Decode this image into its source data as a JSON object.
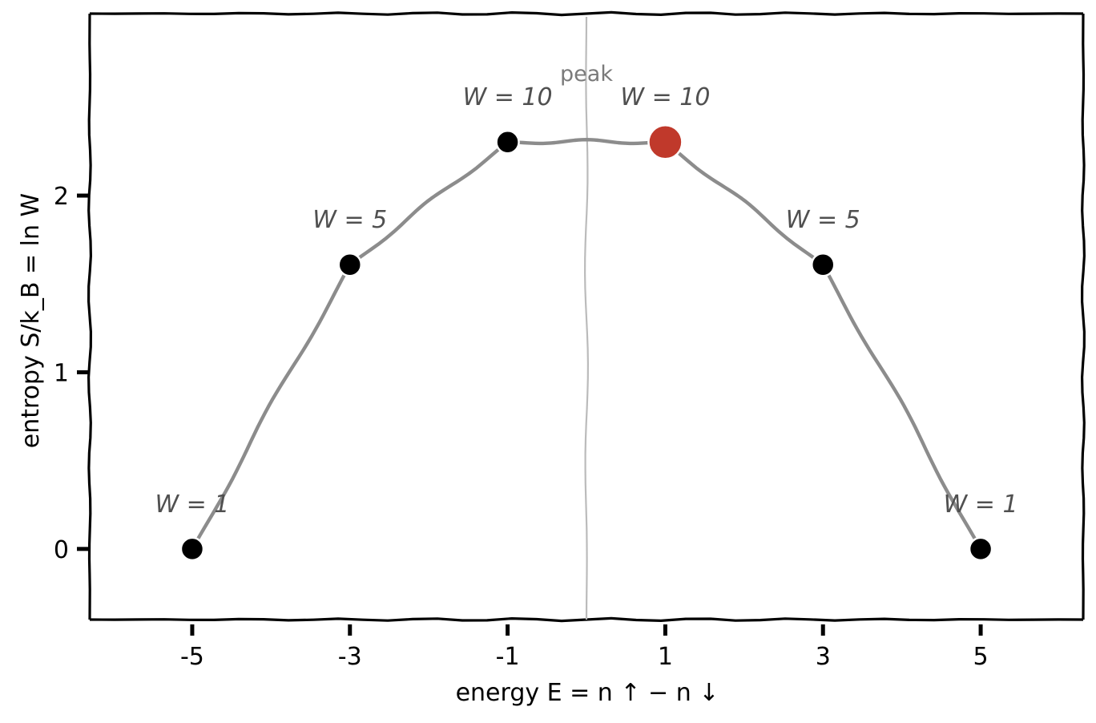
{
  "chart_data": {
    "type": "line",
    "title": "",
    "xlabel": "energy   E = n ↑  − n ↓",
    "ylabel": "entropy   S/k_B = ln W",
    "x_ticks": [
      -5,
      -3,
      -1,
      1,
      3,
      5
    ],
    "y_ticks": [
      0,
      1,
      2
    ],
    "xlim": [
      -6.3,
      6.3
    ],
    "ylim": [
      -0.4,
      3.03
    ],
    "grid": false,
    "series": [
      {
        "x": [
          -5,
          -3,
          -1,
          1,
          3,
          5
        ],
        "y": [
          0,
          1.609,
          2.303,
          2.303,
          1.609,
          0
        ],
        "line_color": "#8c8c8c",
        "marker_color": "#000000"
      }
    ],
    "highlight_point": {
      "x": 1,
      "y": 2.303,
      "color": "#c0392b"
    },
    "annotations": [
      {
        "text": "W = 1",
        "x": -5,
        "y": 0
      },
      {
        "text": "W = 5",
        "x": -3,
        "y": 1.609
      },
      {
        "text": "W = 10",
        "x": -1,
        "y": 2.303
      },
      {
        "text": "W = 10",
        "x": 1,
        "y": 2.303
      },
      {
        "text": "W = 5",
        "x": 3,
        "y": 1.609
      },
      {
        "text": "W = 1",
        "x": 5,
        "y": 0
      }
    ],
    "reference_line": {
      "x": 0,
      "label": "peak",
      "color": "#bbbbbb"
    }
  }
}
